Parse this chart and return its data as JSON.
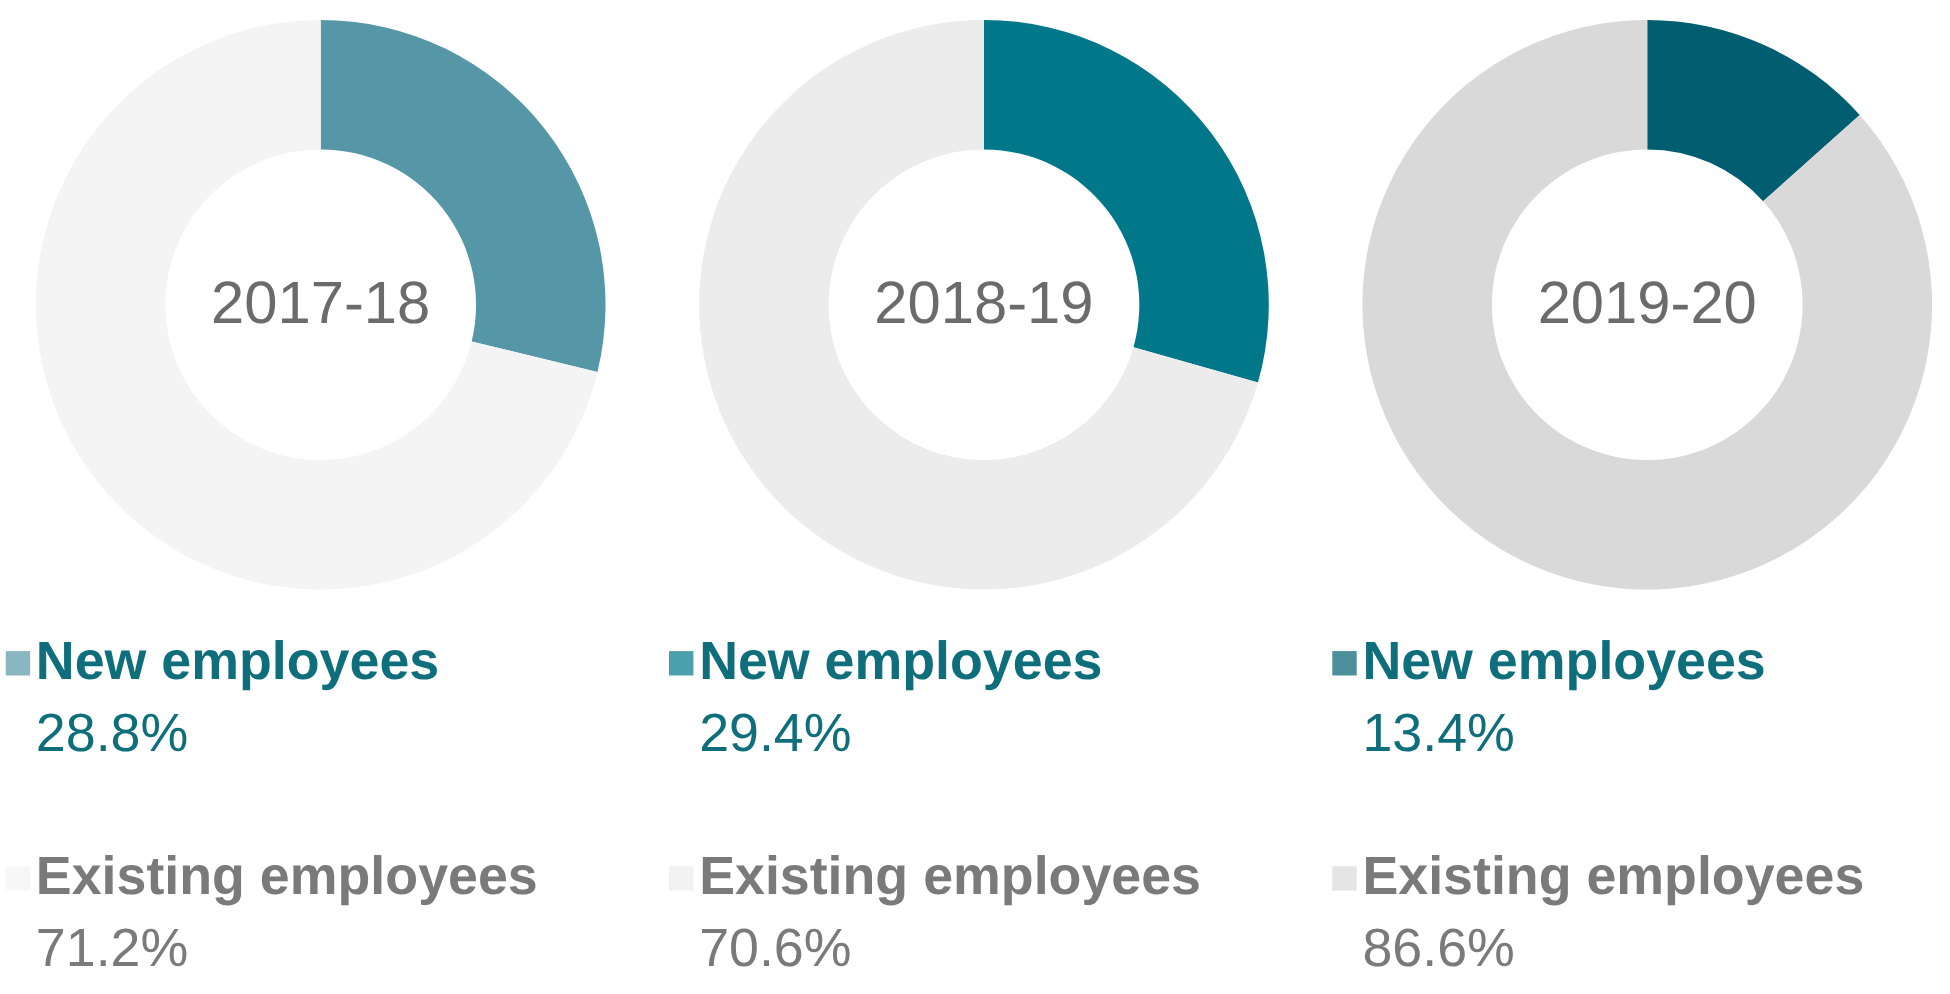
{
  "chart_data": [
    {
      "type": "donut",
      "title": "2017-18",
      "categories": [
        "New employees",
        "Existing employees"
      ],
      "values": [
        28.8,
        71.2
      ],
      "colors": [
        "#5597a6",
        "#f4f4f4"
      ],
      "value_labels": [
        "28.8%",
        "71.2%"
      ],
      "legend": "bottom"
    },
    {
      "type": "donut",
      "title": "2018-19",
      "categories": [
        "New employees",
        "Existing employees"
      ],
      "values": [
        29.4,
        70.6
      ],
      "colors": [
        "#00788a",
        "#ececec"
      ],
      "value_labels": [
        "29.4%",
        "70.6%"
      ],
      "legend": "bottom"
    },
    {
      "type": "donut",
      "title": "2019-20",
      "categories": [
        "New employees",
        "Existing employees"
      ],
      "values": [
        13.4,
        86.6
      ],
      "colors": [
        "#005e70",
        "#d9d9d9"
      ],
      "value_labels": [
        "13.4%",
        "86.6%"
      ],
      "legend": "bottom"
    }
  ]
}
